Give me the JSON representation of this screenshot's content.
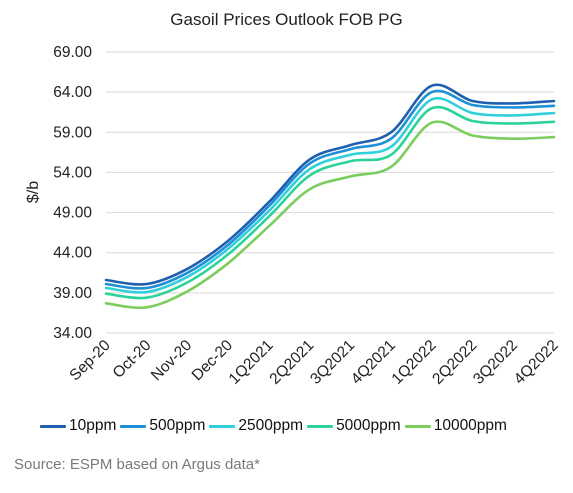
{
  "chart_data": {
    "type": "line",
    "title": "Gasoil Prices Outlook FOB PG",
    "xlabel": "",
    "ylabel": "$/b",
    "ylim": [
      34.0,
      69.0
    ],
    "yticks": [
      "69.00",
      "64.00",
      "59.00",
      "54.00",
      "49.00",
      "44.00",
      "39.00",
      "34.00"
    ],
    "grid": "horizontal",
    "legend_position": "bottom",
    "categories": [
      "Sep-20",
      "Oct-20",
      "Nov-20",
      "Dec-20",
      "1Q2021",
      "2Q2021",
      "3Q2021",
      "4Q2021",
      "1Q2022",
      "2Q2022",
      "3Q2022",
      "4Q2022"
    ],
    "series": [
      {
        "name": "10ppm",
        "color": "#1f5fb0",
        "values": [
          40.6,
          40.1,
          42.0,
          45.5,
          50.3,
          55.6,
          57.4,
          59.0,
          64.8,
          62.9,
          62.6,
          62.9
        ]
      },
      {
        "name": "500ppm",
        "color": "#1e90d6",
        "values": [
          40.1,
          39.6,
          41.5,
          45.0,
          49.8,
          55.1,
          56.9,
          58.2,
          64.0,
          62.4,
          62.1,
          62.3
        ]
      },
      {
        "name": "2500ppm",
        "color": "#2fcfdc",
        "values": [
          39.6,
          39.1,
          41.0,
          44.5,
          49.2,
          54.4,
          56.2,
          57.2,
          63.1,
          61.4,
          61.1,
          61.4
        ]
      },
      {
        "name": "5000ppm",
        "color": "#2bd39a",
        "values": [
          38.9,
          38.4,
          40.3,
          43.8,
          48.5,
          53.6,
          55.4,
          56.2,
          62.0,
          60.4,
          60.1,
          60.3
        ]
      },
      {
        "name": "10000ppm",
        "color": "#7ccc5e",
        "values": [
          37.7,
          37.2,
          39.2,
          42.7,
          47.3,
          51.9,
          53.5,
          54.7,
          60.2,
          58.6,
          58.2,
          58.4
        ]
      }
    ],
    "source": "Source: ESPM based on Argus data*"
  }
}
